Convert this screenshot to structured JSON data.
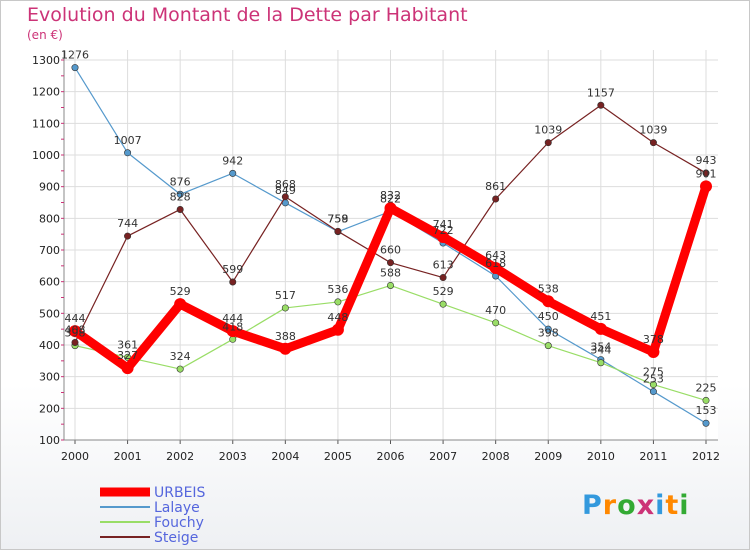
{
  "title": "Evolution du Montant de la Dette par Habitant",
  "unit": "(en €)",
  "logo": "Proxiti",
  "chart_data": {
    "type": "line",
    "title": "Evolution du Montant de la Dette par Habitant",
    "ylabel": "(en €)",
    "x": [
      "2000",
      "2001",
      "2002",
      "2003",
      "2004",
      "2005",
      "2006",
      "2007",
      "2008",
      "2009",
      "2010",
      "2011",
      "2012"
    ],
    "ylim": [
      100,
      1300
    ],
    "yticks": [
      100,
      200,
      300,
      400,
      500,
      600,
      700,
      800,
      900,
      1000,
      1100,
      1200,
      1300
    ],
    "grid": true,
    "legend": "bottom-left",
    "series": [
      {
        "name": "URBEIS",
        "color": "#ff0000",
        "values": [
          444,
          327,
          529,
          444,
          388,
          448,
          832,
          741,
          643,
          538,
          451,
          378,
          901
        ]
      },
      {
        "name": "Lalaye",
        "color": "#5599cc",
        "values": [
          1276,
          1007,
          876,
          942,
          849,
          758,
          822,
          722,
          618,
          450,
          354,
          253,
          153
        ]
      },
      {
        "name": "Fouchy",
        "color": "#99dd66",
        "values": [
          398,
          361,
          324,
          418,
          517,
          536,
          588,
          529,
          470,
          398,
          344,
          275,
          225
        ]
      },
      {
        "name": "Steige",
        "color": "#772222",
        "values": [
          408,
          744,
          828,
          599,
          868,
          759,
          660,
          613,
          861,
          1039,
          1157,
          1039,
          943
        ]
      }
    ]
  }
}
